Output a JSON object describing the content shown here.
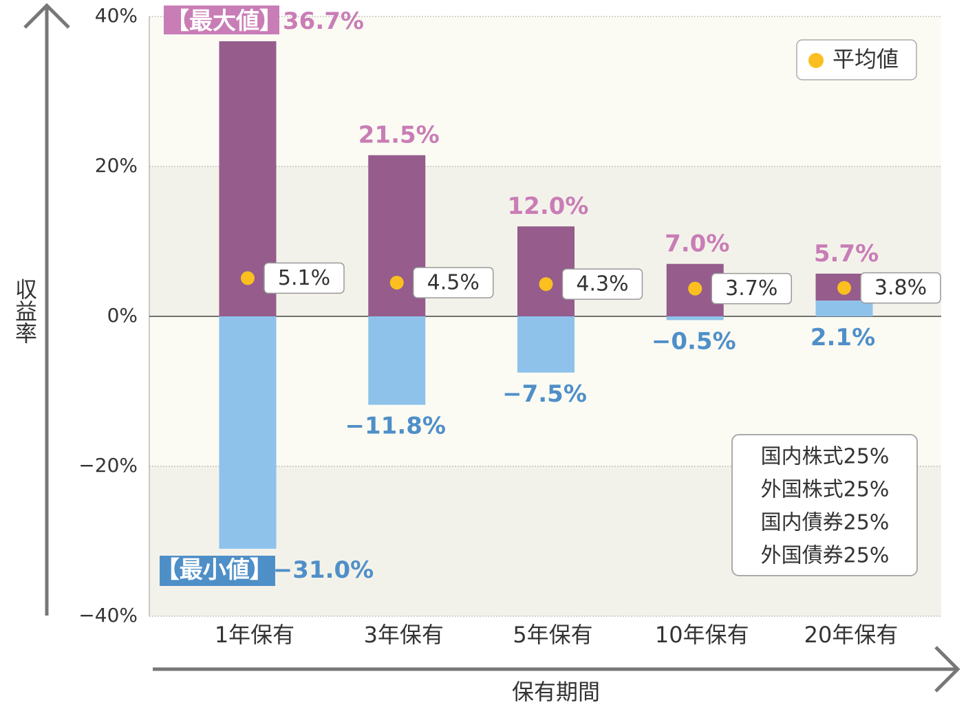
{
  "chart_data": {
    "type": "range-bar",
    "y_axis_label": "収益率",
    "x_axis_label": "保有期間",
    "categories": [
      "1年保有",
      "3年保有",
      "5年保有",
      "10年保有",
      "20年保有"
    ],
    "max": {
      "prefix": "【最大値】",
      "color": "#955c8c",
      "label_color": "#c97db6",
      "values": [
        36.7,
        21.5,
        12.0,
        7.0,
        5.7
      ],
      "value_labels": [
        "36.7%",
        "21.5%",
        "12.0%",
        "7.0%",
        "5.7%"
      ]
    },
    "min": {
      "prefix": "【最小値】",
      "color": "#8ec2ea",
      "label_color": "#4f8fc8",
      "values": [
        -31.0,
        -11.8,
        -7.5,
        -0.5,
        2.1
      ],
      "value_labels": [
        "−31.0%",
        "−11.8%",
        "−7.5%",
        "−0.5%",
        "2.1%"
      ]
    },
    "average": {
      "name": "平均値",
      "color": "#fbbf1f",
      "values": [
        5.1,
        4.5,
        4.3,
        3.7,
        3.8
      ],
      "value_labels": [
        "5.1%",
        "4.5%",
        "4.3%",
        "3.7%",
        "3.8%"
      ]
    },
    "ylim": [
      -40,
      40
    ],
    "yticks": [
      {
        "value": 40,
        "label": "40%"
      },
      {
        "value": 20,
        "label": "20%"
      },
      {
        "value": 0,
        "label": "0%"
      },
      {
        "value": -20,
        "label": "−20%"
      },
      {
        "value": -40,
        "label": "−40%"
      }
    ],
    "grid": true,
    "note": [
      "国内株式25%",
      "外国株式25%",
      "国内債券25%",
      "外国債券25%"
    ]
  }
}
